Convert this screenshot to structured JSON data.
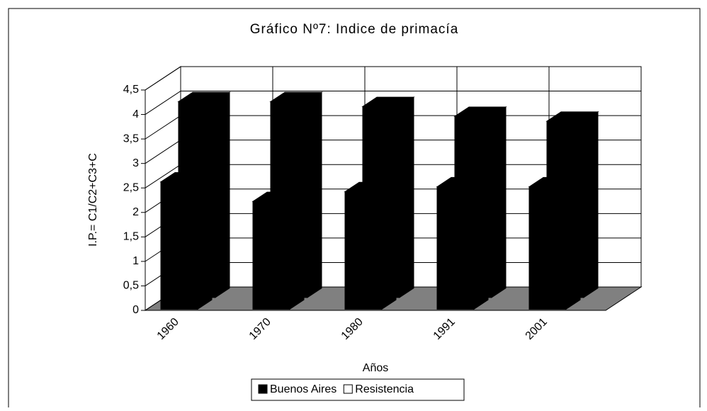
{
  "chart_data": {
    "type": "bar3d",
    "title": "Gráfico Nº7: Indice de primacía",
    "x_label": "Años",
    "y_label": "I.P.= C1/C2+C3+C",
    "categories": [
      "1960",
      "1970",
      "1980",
      "1991",
      "2001"
    ],
    "series": [
      {
        "name": "Buenos Aires",
        "color": "#000000",
        "legend_color": "#000000",
        "values": [
          2.6,
          2.2,
          2.4,
          2.5,
          2.5
        ]
      },
      {
        "name": "Resistencia",
        "color": "#000000",
        "legend_color": "#ffffff",
        "values": [
          4.0,
          4.0,
          3.9,
          3.7,
          3.6
        ]
      }
    ],
    "ylim": [
      0,
      4.5
    ],
    "yticks": [
      0,
      {
        "value": 0.5,
        "label": "0,5"
      },
      1,
      {
        "value": 1.5,
        "label": "1,5"
      },
      2,
      {
        "value": 2.5,
        "label": "2,5"
      },
      3,
      {
        "value": 3.5,
        "label": "3,5"
      },
      4,
      {
        "value": 4.5,
        "label": "4,5"
      }
    ],
    "grid": true,
    "legend": "bottom"
  }
}
